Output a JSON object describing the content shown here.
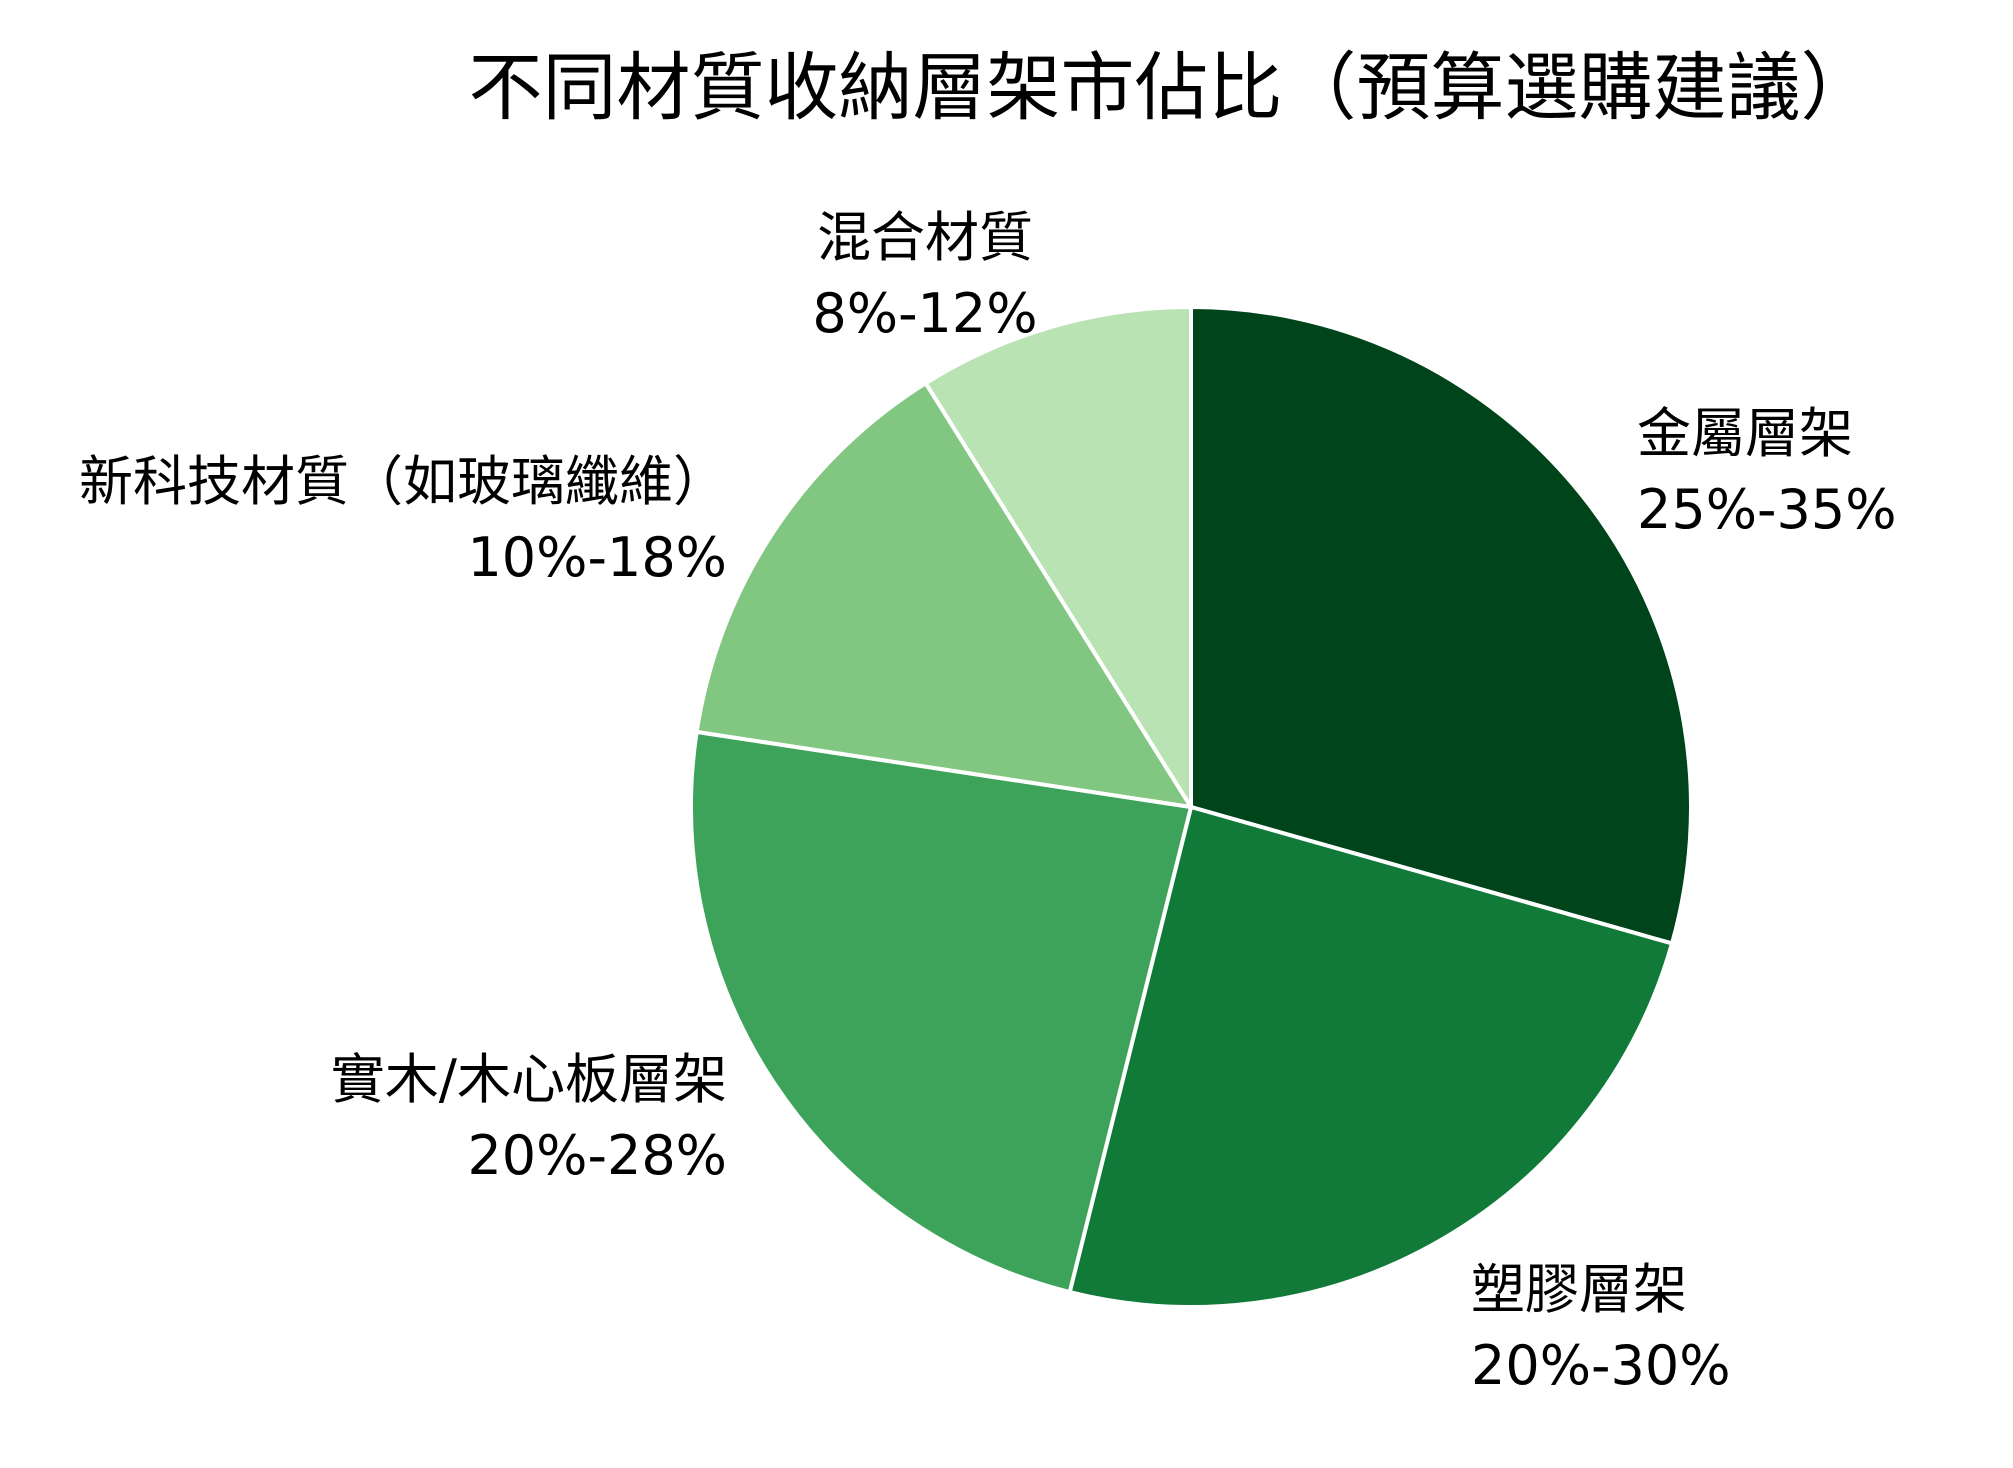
{
  "chart_data": {
    "type": "pie",
    "title": "不同材質收納層架市佔比（預算選購建議）",
    "start_angle_deg": 90,
    "direction": "clockwise",
    "categories": [
      "金屬層架",
      "塑膠層架",
      "實木/木心板層架",
      "新科技材質（如玻璃纖維）",
      "混合材質"
    ],
    "values": [
      29.4,
      24.5,
      23.5,
      13.7,
      8.9
    ],
    "range_labels": [
      "25%-35%",
      "20%-30%",
      "20%-28%",
      "10%-18%",
      "8%-12%"
    ],
    "colors": [
      "#00441b",
      "#117a38",
      "#3da35a",
      "#81c781",
      "#b9e3b3"
    ],
    "wedge_edgecolor": "#ffffff",
    "legend": "none",
    "grid": false
  },
  "slices": [
    {
      "name": "金屬層架",
      "range": "25%-35%"
    },
    {
      "name": "塑膠層架",
      "range": "20%-30%"
    },
    {
      "name": "實木/木心板層架",
      "range": "20%-28%"
    },
    {
      "name": "新科技材質（如玻璃纖維）",
      "range": "10%-18%"
    },
    {
      "name": "混合材質",
      "range": "8%-12%"
    }
  ]
}
